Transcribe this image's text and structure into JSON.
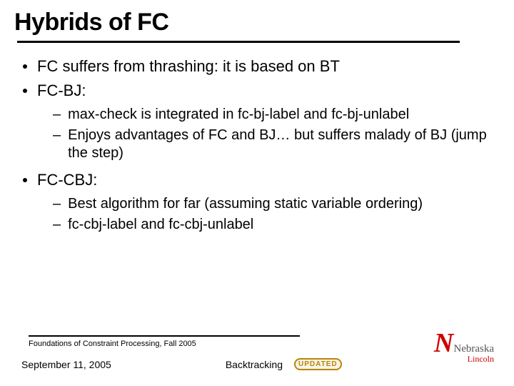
{
  "slide": {
    "title": "Hybrids of FC",
    "bullets": [
      {
        "text": "FC suffers from thrashing: it is based on BT",
        "sub": []
      },
      {
        "text": "FC-BJ:",
        "sub": [
          "max-check is integrated in fc-bj-label and fc-bj-unlabel",
          "Enjoys advantages of FC and BJ… but suffers malady of BJ (jump the step)"
        ]
      },
      {
        "text": "FC-CBJ:",
        "sub": [
          "Best algorithm for far (assuming static variable ordering)",
          "fc-cbj-label and fc-cbj-unlabel"
        ]
      }
    ]
  },
  "footer": {
    "course": "Foundations of Constraint Processing, Fall 2005",
    "date": "September 11, 2005",
    "topic": "Backtracking",
    "badge": "UPDATED"
  },
  "logo": {
    "letter": "N",
    "name": "Nebraska",
    "campus": "Lincoln",
    "accent_color": "#d00000"
  },
  "colors": {
    "text": "#000000",
    "background": "#ffffff",
    "rule": "#000000",
    "badge_color": "#b8860b"
  },
  "typography": {
    "title_size_pt": 26,
    "body_size_pt": 17,
    "sub_size_pt": 15,
    "footer_size_pt": 10
  }
}
